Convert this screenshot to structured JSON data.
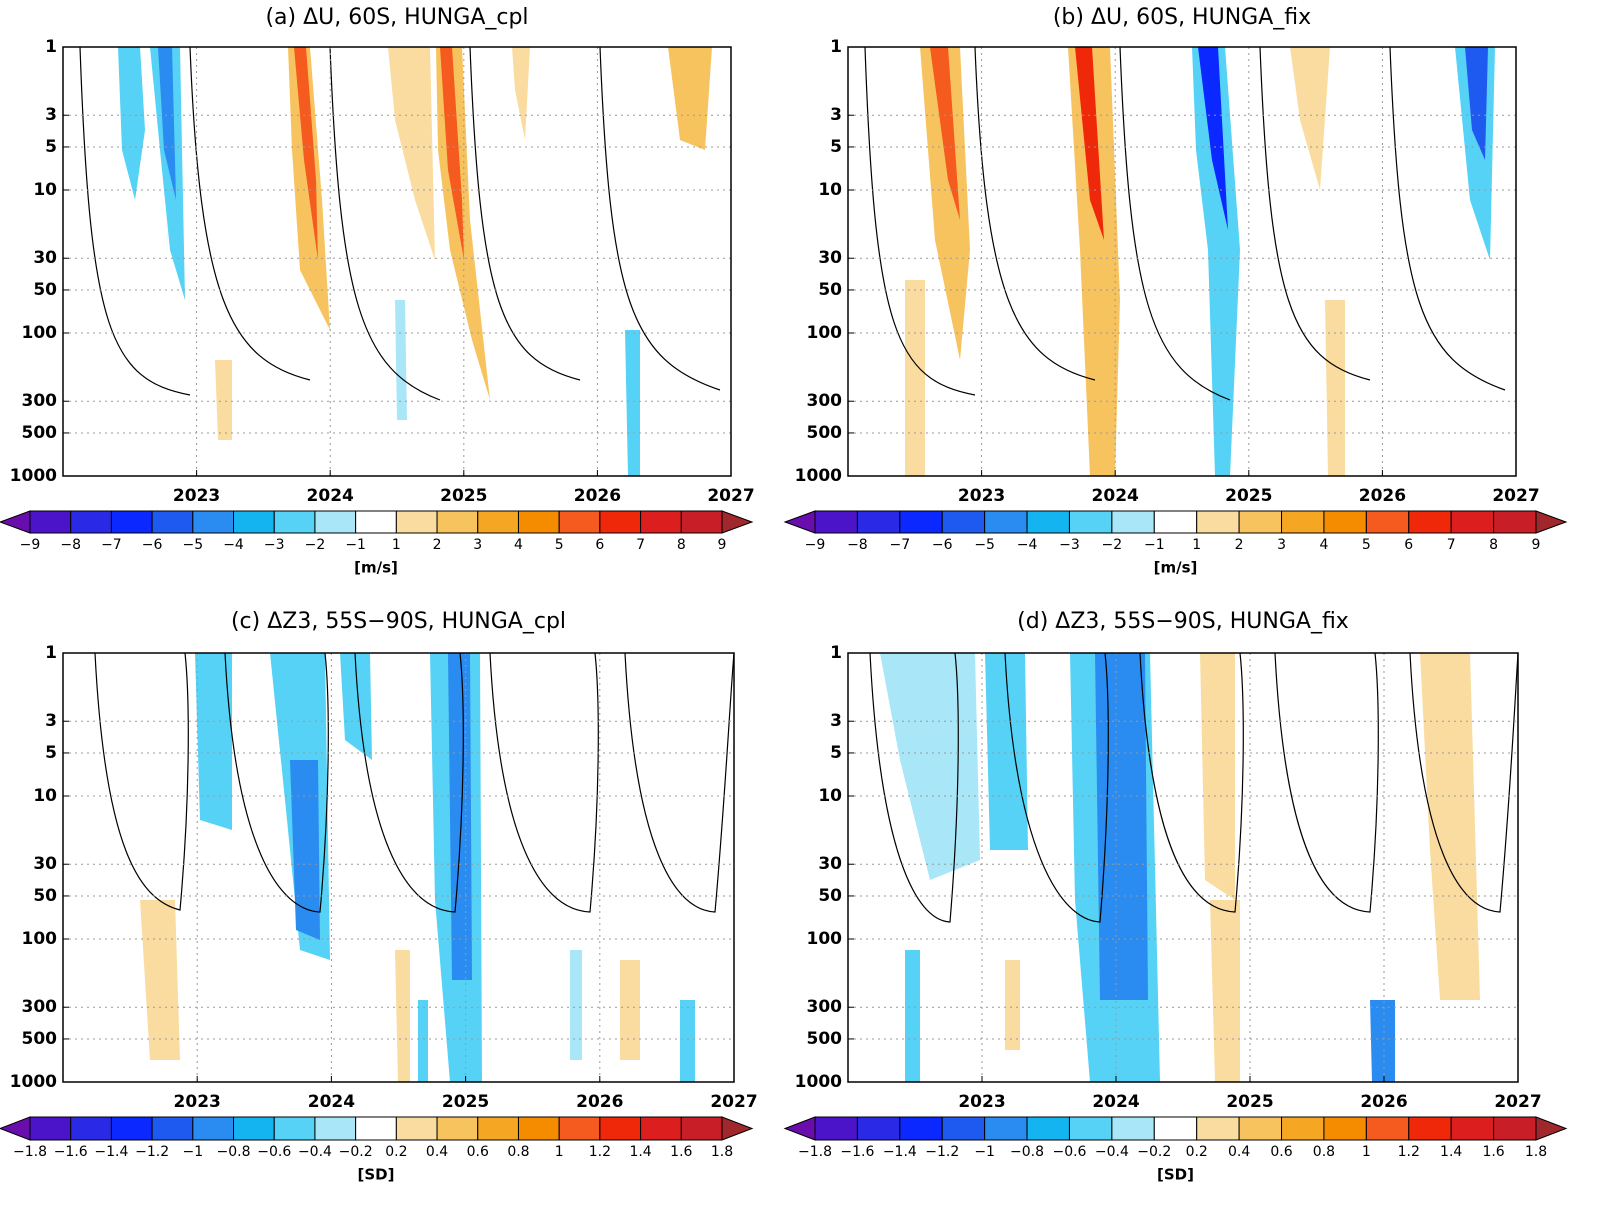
{
  "chart_data": [
    {
      "type": "contour",
      "title": "(a) ΔU, 60S, HUNGA_cpl",
      "xlim": [
        2022,
        2027
      ],
      "xticks": [
        2023,
        2024,
        2025,
        2026,
        2027
      ],
      "ylim": [
        1000,
        1
      ],
      "yticks": [
        1,
        3,
        5,
        10,
        30,
        50,
        100,
        300,
        500,
        1000
      ],
      "log_y": true,
      "grid": true,
      "colorbar": {
        "label": "[m/s]",
        "levels": [
          {
            "value": -9,
            "label": "−9"
          },
          {
            "value": -8,
            "label": "−8"
          },
          {
            "value": -7,
            "label": "−7"
          },
          {
            "value": -6,
            "label": "−6"
          },
          {
            "value": -5,
            "label": "−5"
          },
          {
            "value": -4,
            "label": "−4"
          },
          {
            "value": -3,
            "label": "−3"
          },
          {
            "value": -2,
            "label": "−2"
          },
          {
            "value": -1,
            "label": "−1"
          },
          1,
          2,
          3,
          4,
          5,
          6,
          7,
          8,
          9
        ],
        "colors": [
          "#6a0dad",
          "#4b14c8",
          "#2a2ae6",
          "#0a28ff",
          "#1e5af0",
          "#2a8cf0",
          "#14b4f0",
          "#55d2f5",
          "#a8e6f8",
          "#ffffff",
          "#fadca0",
          "#f7c35f",
          "#f5a623",
          "#f58c00",
          "#f55a1e",
          "#f0280a",
          "#dc1e1e",
          "#c81e28",
          "#a0282d"
        ]
      }
    },
    {
      "type": "contour",
      "title": "(b) ΔU, 60S, HUNGA_fix",
      "xlim": [
        2022,
        2027
      ],
      "xticks": [
        2023,
        2024,
        2025,
        2026,
        2027
      ],
      "ylim": [
        1000,
        1
      ],
      "yticks": [
        1,
        3,
        5,
        10,
        30,
        50,
        100,
        300,
        500,
        1000
      ],
      "log_y": true,
      "grid": true,
      "colorbar": {
        "label": "[m/s]",
        "levels": [
          {
            "value": -9,
            "label": "−9"
          },
          {
            "value": -8,
            "label": "−8"
          },
          {
            "value": -7,
            "label": "−7"
          },
          {
            "value": -6,
            "label": "−6"
          },
          {
            "value": -5,
            "label": "−5"
          },
          {
            "value": -4,
            "label": "−4"
          },
          {
            "value": -3,
            "label": "−3"
          },
          {
            "value": -2,
            "label": "−2"
          },
          {
            "value": -1,
            "label": "−1"
          },
          1,
          2,
          3,
          4,
          5,
          6,
          7,
          8,
          9
        ],
        "colors": [
          "#6a0dad",
          "#4b14c8",
          "#2a2ae6",
          "#0a28ff",
          "#1e5af0",
          "#2a8cf0",
          "#14b4f0",
          "#55d2f5",
          "#a8e6f8",
          "#ffffff",
          "#fadca0",
          "#f7c35f",
          "#f5a623",
          "#f58c00",
          "#f55a1e",
          "#f0280a",
          "#dc1e1e",
          "#c81e28",
          "#a0282d"
        ]
      }
    },
    {
      "type": "contour",
      "title": "(c) ΔZ3, 55S−90S, HUNGA_cpl",
      "xlim": [
        2022,
        2027
      ],
      "xticks": [
        2023,
        2024,
        2025,
        2026,
        2027
      ],
      "ylim": [
        1000,
        1
      ],
      "yticks": [
        1,
        3,
        5,
        10,
        30,
        50,
        100,
        300,
        500,
        1000
      ],
      "log_y": true,
      "grid": true,
      "colorbar": {
        "label": "[SD]",
        "levels": [
          {
            "value": -1.8,
            "label": "−1.8"
          },
          {
            "value": -1.6,
            "label": "−1.6"
          },
          {
            "value": -1.4,
            "label": "−1.4"
          },
          {
            "value": -1.2,
            "label": "−1.2"
          },
          {
            "value": -1,
            "label": "−1"
          },
          {
            "value": -0.8,
            "label": "−0.8"
          },
          {
            "value": -0.6,
            "label": "−0.6"
          },
          {
            "value": -0.4,
            "label": "−0.4"
          },
          {
            "value": -0.2,
            "label": "−0.2"
          },
          0.2,
          0.4,
          0.6,
          0.8,
          1,
          1.2,
          1.4,
          1.6,
          1.8
        ],
        "colors": [
          "#6a0dad",
          "#4b14c8",
          "#2a2ae6",
          "#0a28ff",
          "#1e5af0",
          "#2a8cf0",
          "#14b4f0",
          "#55d2f5",
          "#a8e6f8",
          "#ffffff",
          "#fadca0",
          "#f7c35f",
          "#f5a623",
          "#f58c00",
          "#f55a1e",
          "#f0280a",
          "#dc1e1e",
          "#c81e28",
          "#a0282d"
        ]
      }
    },
    {
      "type": "contour",
      "title": "(d) ΔZ3, 55S−90S, HUNGA_fix",
      "xlim": [
        2022,
        2027
      ],
      "xticks": [
        2023,
        2024,
        2025,
        2026,
        2027
      ],
      "ylim": [
        1000,
        1
      ],
      "yticks": [
        1,
        3,
        5,
        10,
        30,
        50,
        100,
        300,
        500,
        1000
      ],
      "log_y": true,
      "grid": true,
      "colorbar": {
        "label": "[SD]",
        "levels": [
          {
            "value": -1.8,
            "label": "−1.8"
          },
          {
            "value": -1.6,
            "label": "−1.6"
          },
          {
            "value": -1.4,
            "label": "−1.4"
          },
          {
            "value": -1.2,
            "label": "−1.2"
          },
          {
            "value": -1,
            "label": "−1"
          },
          {
            "value": -0.8,
            "label": "−0.8"
          },
          {
            "value": -0.6,
            "label": "−0.6"
          },
          {
            "value": -0.4,
            "label": "−0.4"
          },
          {
            "value": -0.2,
            "label": "−0.2"
          },
          0.2,
          0.4,
          0.6,
          0.8,
          1,
          1.2,
          1.4,
          1.6,
          1.8
        ],
        "colors": [
          "#6a0dad",
          "#4b14c8",
          "#2a2ae6",
          "#0a28ff",
          "#1e5af0",
          "#2a8cf0",
          "#14b4f0",
          "#55d2f5",
          "#a8e6f8",
          "#ffffff",
          "#fadca0",
          "#f7c35f",
          "#f5a623",
          "#f58c00",
          "#f55a1e",
          "#f0280a",
          "#dc1e1e",
          "#c81e28",
          "#a0282d"
        ]
      }
    }
  ]
}
